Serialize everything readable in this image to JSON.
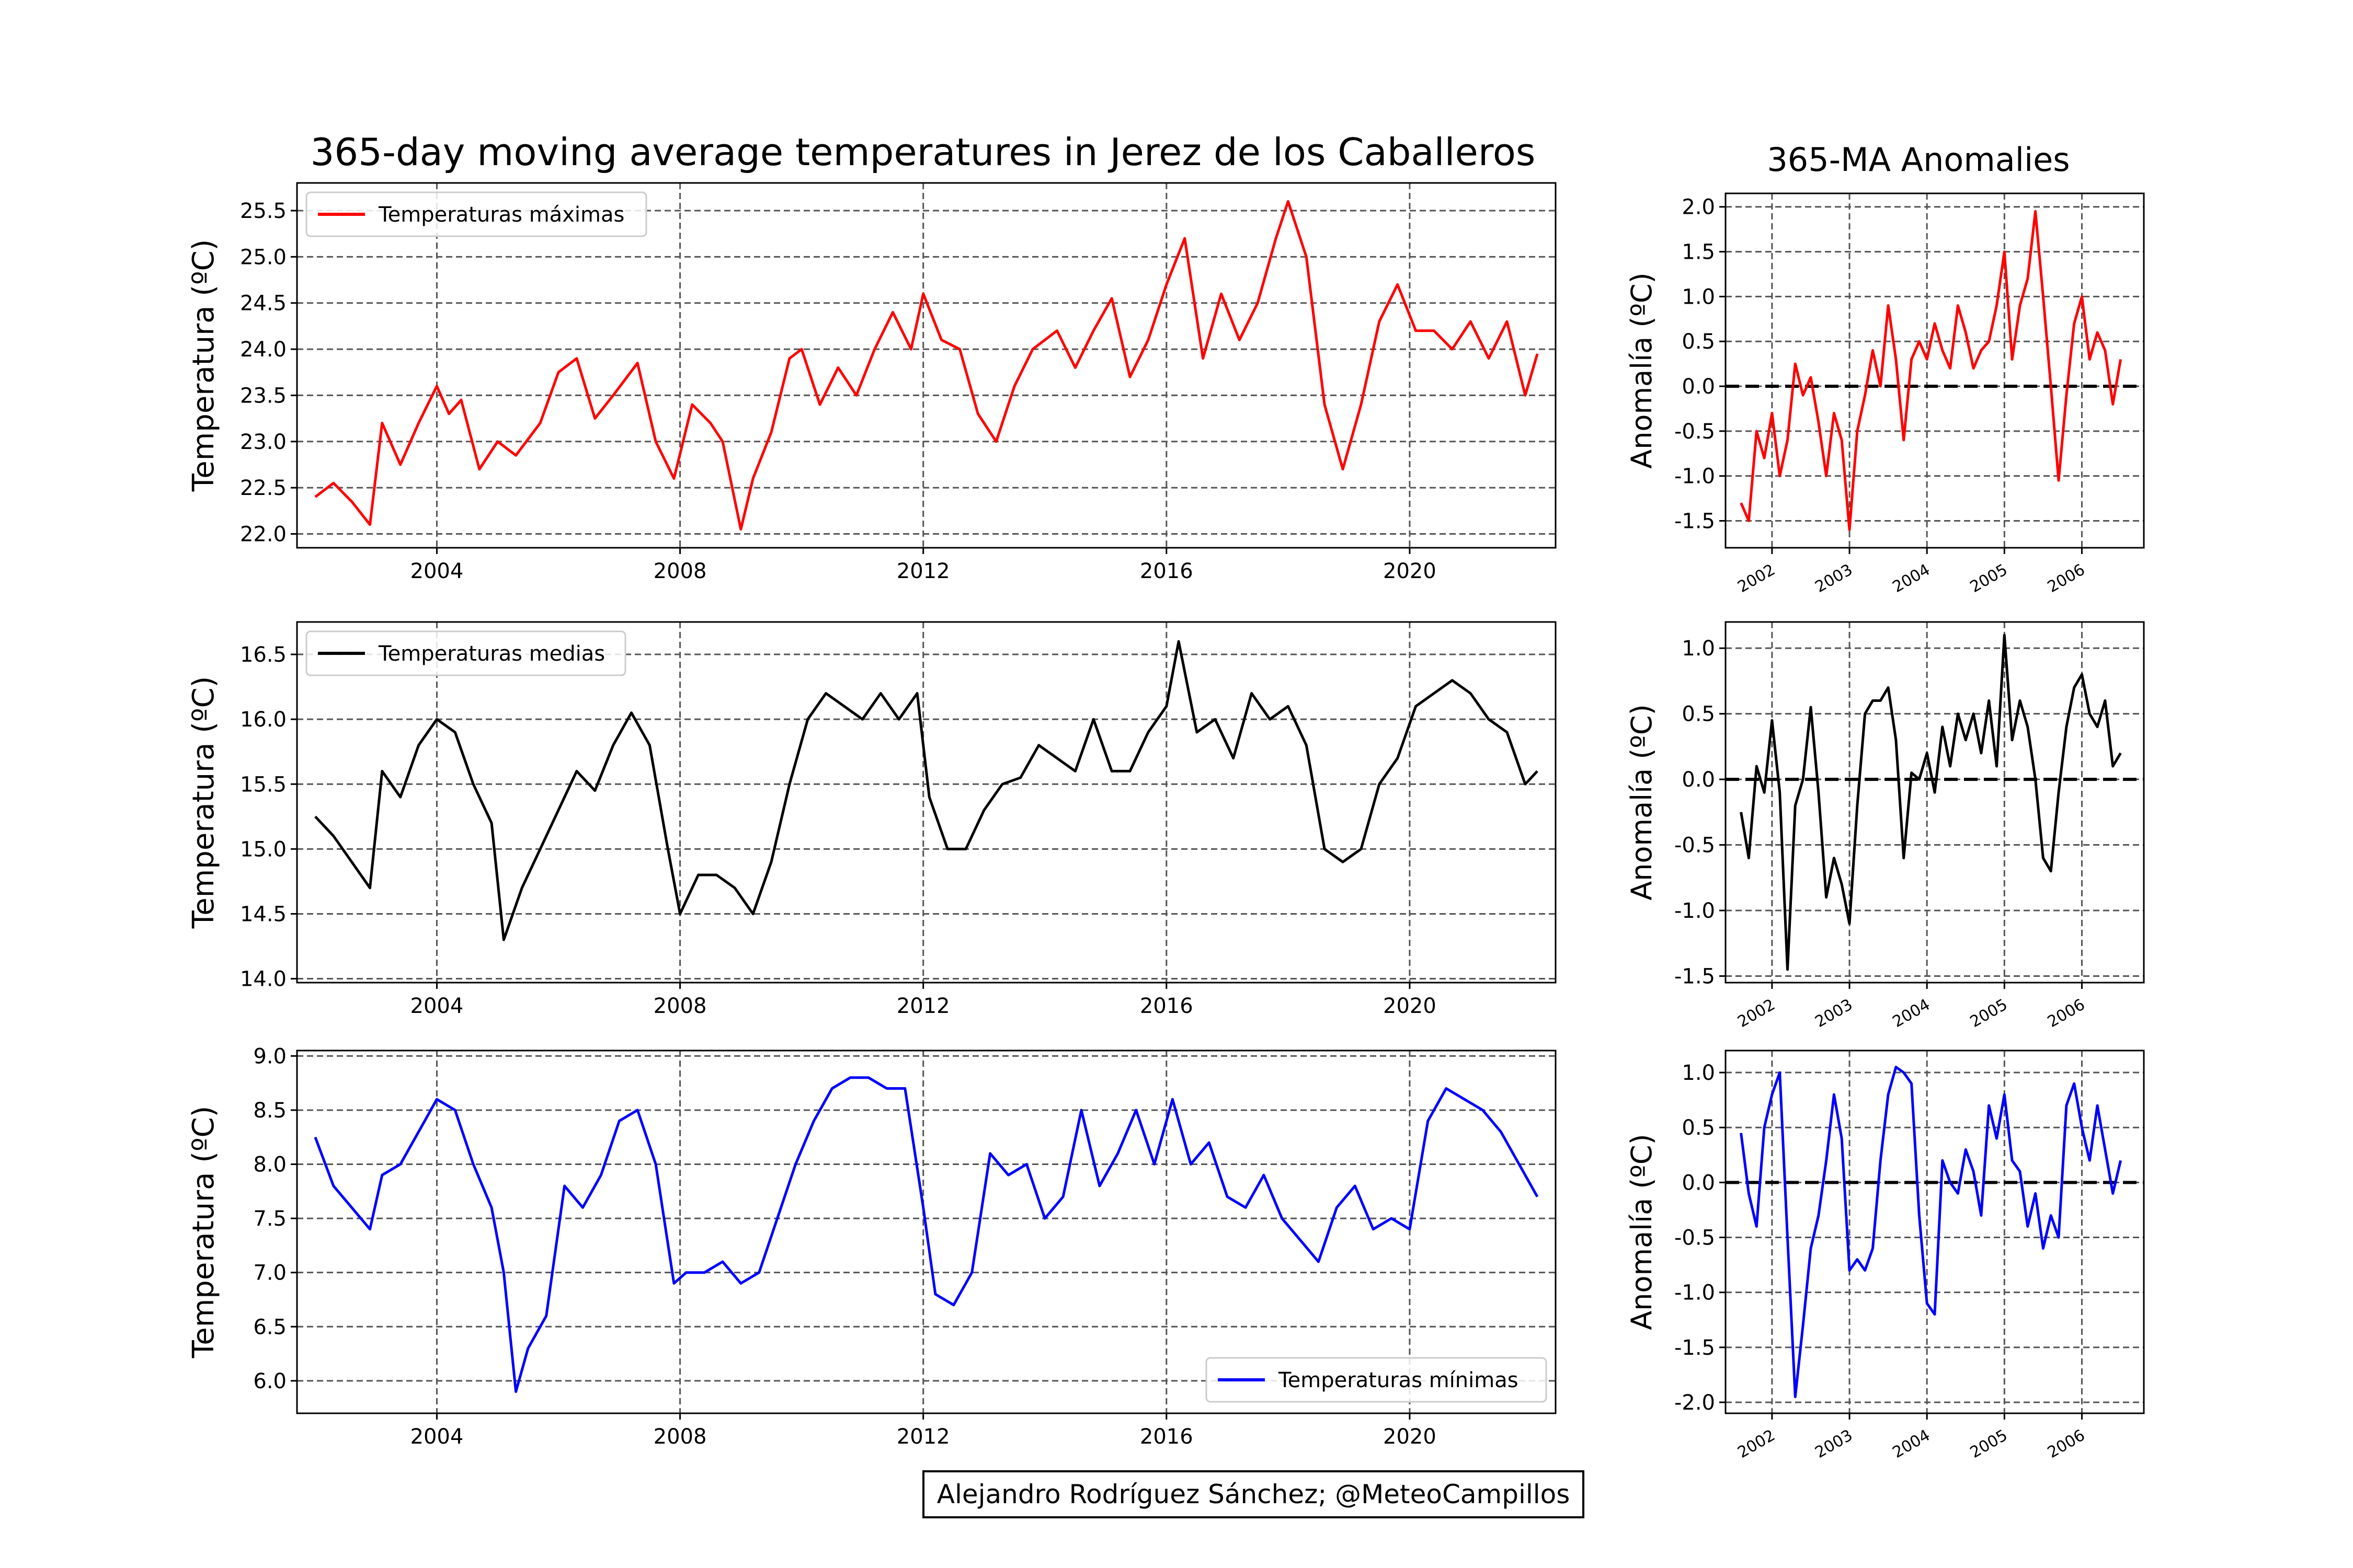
{
  "figure": {
    "main_title": "365-day moving average temperatures in Jerez de los Caballeros",
    "anomaly_title": "365-MA Anomalies",
    "credit": "Alejandro Rodríguez Sánchez; @MeteoCampillos",
    "ylabel_main": "Temperatura (ºC)",
    "ylabel_anom": "Anomalía (ºC)"
  },
  "colors": {
    "max": "#ff0000",
    "mean": "#000000",
    "min": "#0000ff",
    "grid": "#555555"
  },
  "chart_data": [
    {
      "type": "line",
      "id": "max",
      "legend": "Temperaturas máximas",
      "legend_position": "upper-left",
      "xlim": [
        2001.7,
        2022.4
      ],
      "ylim": [
        21.85,
        25.8
      ],
      "xticks": [
        2004,
        2008,
        2012,
        2016,
        2020
      ],
      "yticks": [
        22.0,
        22.5,
        23.0,
        23.5,
        24.0,
        24.5,
        25.0,
        25.5
      ],
      "grid": true,
      "x": [
        2002.0,
        2002.3,
        2002.6,
        2002.9,
        2003.1,
        2003.4,
        2003.7,
        2004.0,
        2004.2,
        2004.4,
        2004.7,
        2005.0,
        2005.3,
        2005.7,
        2006.0,
        2006.3,
        2006.6,
        2006.9,
        2007.3,
        2007.6,
        2007.9,
        2008.2,
        2008.5,
        2008.7,
        2009.0,
        2009.2,
        2009.5,
        2009.8,
        2010.0,
        2010.3,
        2010.6,
        2010.9,
        2011.2,
        2011.5,
        2011.8,
        2012.0,
        2012.3,
        2012.6,
        2012.9,
        2013.2,
        2013.5,
        2013.8,
        2014.2,
        2014.5,
        2014.8,
        2015.1,
        2015.4,
        2015.7,
        2016.0,
        2016.3,
        2016.6,
        2016.9,
        2017.2,
        2017.5,
        2017.8,
        2018.0,
        2018.3,
        2018.6,
        2018.9,
        2019.2,
        2019.5,
        2019.8,
        2020.1,
        2020.4,
        2020.7,
        2021.0,
        2021.3,
        2021.6,
        2021.9,
        2022.1
      ],
      "y": [
        22.4,
        22.55,
        22.35,
        22.1,
        23.2,
        22.75,
        23.2,
        23.6,
        23.3,
        23.45,
        22.7,
        23.0,
        22.85,
        23.2,
        23.75,
        23.9,
        23.25,
        23.5,
        23.85,
        23.0,
        22.6,
        23.4,
        23.2,
        23.0,
        22.05,
        22.6,
        23.1,
        23.9,
        24.0,
        23.4,
        23.8,
        23.5,
        24.0,
        24.4,
        24.0,
        24.6,
        24.1,
        24.0,
        23.3,
        23.0,
        23.6,
        24.0,
        24.2,
        23.8,
        24.2,
        24.55,
        23.7,
        24.1,
        24.7,
        25.2,
        23.9,
        24.6,
        24.1,
        24.5,
        25.2,
        25.6,
        25.0,
        23.4,
        22.7,
        23.4,
        24.3,
        24.7,
        24.2,
        24.2,
        24.0,
        24.3,
        23.9,
        24.3,
        23.5,
        23.95
      ]
    },
    {
      "type": "line",
      "id": "mean",
      "legend": "Temperaturas medias",
      "legend_position": "upper-left",
      "xlim": [
        2001.7,
        2022.4
      ],
      "ylim": [
        13.97,
        16.75
      ],
      "xticks": [
        2004,
        2008,
        2012,
        2016,
        2020
      ],
      "yticks": [
        14.0,
        14.5,
        15.0,
        15.5,
        16.0,
        16.5
      ],
      "grid": true,
      "x": [
        2002.0,
        2002.3,
        2002.6,
        2002.9,
        2003.1,
        2003.4,
        2003.7,
        2004.0,
        2004.3,
        2004.6,
        2004.9,
        2005.1,
        2005.4,
        2005.7,
        2006.0,
        2006.3,
        2006.6,
        2006.9,
        2007.2,
        2007.5,
        2007.8,
        2008.0,
        2008.3,
        2008.6,
        2008.9,
        2009.2,
        2009.5,
        2009.8,
        2010.1,
        2010.4,
        2010.7,
        2011.0,
        2011.3,
        2011.6,
        2011.9,
        2012.1,
        2012.4,
        2012.7,
        2013.0,
        2013.3,
        2013.6,
        2013.9,
        2014.2,
        2014.5,
        2014.8,
        2015.1,
        2015.4,
        2015.7,
        2016.0,
        2016.2,
        2016.5,
        2016.8,
        2017.1,
        2017.4,
        2017.7,
        2018.0,
        2018.3,
        2018.6,
        2018.9,
        2019.2,
        2019.5,
        2019.8,
        2020.1,
        2020.4,
        2020.7,
        2021.0,
        2021.3,
        2021.6,
        2021.9,
        2022.1
      ],
      "y": [
        15.25,
        15.1,
        14.9,
        14.7,
        15.6,
        15.4,
        15.8,
        16.0,
        15.9,
        15.5,
        15.2,
        14.3,
        14.7,
        15.0,
        15.3,
        15.6,
        15.45,
        15.8,
        16.05,
        15.8,
        15.0,
        14.5,
        14.8,
        14.8,
        14.7,
        14.5,
        14.9,
        15.5,
        16.0,
        16.2,
        16.1,
        16.0,
        16.2,
        16.0,
        16.2,
        15.4,
        15.0,
        15.0,
        15.3,
        15.5,
        15.55,
        15.8,
        15.7,
        15.6,
        16.0,
        15.6,
        15.6,
        15.9,
        16.1,
        16.6,
        15.9,
        16.0,
        15.7,
        16.2,
        16.0,
        16.1,
        15.8,
        15.0,
        14.9,
        15.0,
        15.5,
        15.7,
        16.1,
        16.2,
        16.3,
        16.2,
        16.0,
        15.9,
        15.5,
        15.6
      ]
    },
    {
      "type": "line",
      "id": "min",
      "legend": "Temperaturas mínimas",
      "legend_position": "lower-right",
      "xlim": [
        2001.7,
        2022.4
      ],
      "ylim": [
        5.7,
        9.05
      ],
      "xticks": [
        2004,
        2008,
        2012,
        2016,
        2020
      ],
      "yticks": [
        6.0,
        6.5,
        7.0,
        7.5,
        8.0,
        8.5,
        9.0
      ],
      "grid": true,
      "x": [
        2002.0,
        2002.3,
        2002.6,
        2002.9,
        2003.1,
        2003.4,
        2003.7,
        2004.0,
        2004.3,
        2004.6,
        2004.9,
        2005.1,
        2005.3,
        2005.5,
        2005.8,
        2006.1,
        2006.4,
        2006.7,
        2007.0,
        2007.3,
        2007.6,
        2007.9,
        2008.1,
        2008.4,
        2008.7,
        2009.0,
        2009.3,
        2009.6,
        2009.9,
        2010.2,
        2010.5,
        2010.8,
        2011.1,
        2011.4,
        2011.7,
        2012.0,
        2012.2,
        2012.5,
        2012.8,
        2013.1,
        2013.4,
        2013.7,
        2014.0,
        2014.3,
        2014.6,
        2014.9,
        2015.2,
        2015.5,
        2015.8,
        2016.1,
        2016.4,
        2016.7,
        2017.0,
        2017.3,
        2017.6,
        2017.9,
        2018.2,
        2018.5,
        2018.8,
        2019.1,
        2019.4,
        2019.7,
        2020.0,
        2020.3,
        2020.6,
        2020.9,
        2021.2,
        2021.5,
        2021.8,
        2022.1
      ],
      "y": [
        8.25,
        7.8,
        7.6,
        7.4,
        7.9,
        8.0,
        8.3,
        8.6,
        8.5,
        8.0,
        7.6,
        7.0,
        5.9,
        6.3,
        6.6,
        7.8,
        7.6,
        7.9,
        8.4,
        8.5,
        8.0,
        6.9,
        7.0,
        7.0,
        7.1,
        6.9,
        7.0,
        7.5,
        8.0,
        8.4,
        8.7,
        8.8,
        8.8,
        8.7,
        8.7,
        7.6,
        6.8,
        6.7,
        7.0,
        8.1,
        7.9,
        8.0,
        7.5,
        7.7,
        8.5,
        7.8,
        8.1,
        8.5,
        8.0,
        8.6,
        8.0,
        8.2,
        7.7,
        7.6,
        7.9,
        7.5,
        7.3,
        7.1,
        7.6,
        7.8,
        7.4,
        7.5,
        7.4,
        8.4,
        8.7,
        8.6,
        8.5,
        8.3,
        8.0,
        7.7
      ]
    },
    {
      "type": "line",
      "id": "max-anomaly",
      "xlim": [
        2001.4,
        2006.8
      ],
      "ylim": [
        -1.8,
        2.15
      ],
      "xticks": [
        2002,
        2003,
        2004,
        2005,
        2006
      ],
      "yticks": [
        -1.5,
        -1.0,
        -0.5,
        0.0,
        0.5,
        1.0,
        1.5,
        2.0
      ],
      "zero_line": true,
      "grid": true,
      "x": [
        2001.6,
        2001.7,
        2001.8,
        2001.9,
        2002.0,
        2002.1,
        2002.2,
        2002.3,
        2002.4,
        2002.5,
        2002.6,
        2002.7,
        2002.8,
        2002.9,
        2003.0,
        2003.1,
        2003.2,
        2003.3,
        2003.4,
        2003.5,
        2003.6,
        2003.7,
        2003.8,
        2003.9,
        2004.0,
        2004.1,
        2004.2,
        2004.3,
        2004.4,
        2004.5,
        2004.6,
        2004.7,
        2004.8,
        2004.9,
        2005.0,
        2005.1,
        2005.2,
        2005.3,
        2005.4,
        2005.5,
        2005.6,
        2005.7,
        2005.8,
        2005.9,
        2006.0,
        2006.1,
        2006.2,
        2006.3,
        2006.4,
        2006.5
      ],
      "y": [
        -1.3,
        -1.5,
        -0.5,
        -0.8,
        -0.3,
        -1.0,
        -0.6,
        0.25,
        -0.1,
        0.1,
        -0.4,
        -1.0,
        -0.3,
        -0.6,
        -1.6,
        -0.5,
        -0.1,
        0.4,
        0.0,
        0.9,
        0.3,
        -0.6,
        0.3,
        0.5,
        0.3,
        0.7,
        0.4,
        0.2,
        0.9,
        0.6,
        0.2,
        0.4,
        0.5,
        0.9,
        1.5,
        0.3,
        0.9,
        1.2,
        1.95,
        1.0,
        0.0,
        -1.05,
        -0.1,
        0.7,
        1.0,
        0.3,
        0.6,
        0.4,
        -0.2,
        0.3
      ]
    },
    {
      "type": "line",
      "id": "mean-anomaly",
      "xlim": [
        2001.4,
        2006.8
      ],
      "ylim": [
        -1.55,
        1.2
      ],
      "xticks": [
        2002,
        2003,
        2004,
        2005,
        2006
      ],
      "yticks": [
        -1.5,
        -1.0,
        -0.5,
        0.0,
        0.5,
        1.0
      ],
      "zero_line": true,
      "grid": true,
      "x": [
        2001.6,
        2001.7,
        2001.8,
        2001.9,
        2002.0,
        2002.1,
        2002.2,
        2002.3,
        2002.4,
        2002.5,
        2002.6,
        2002.7,
        2002.8,
        2002.9,
        2003.0,
        2003.1,
        2003.2,
        2003.3,
        2003.4,
        2003.5,
        2003.6,
        2003.7,
        2003.8,
        2003.9,
        2004.0,
        2004.1,
        2004.2,
        2004.3,
        2004.4,
        2004.5,
        2004.6,
        2004.7,
        2004.8,
        2004.9,
        2005.0,
        2005.1,
        2005.2,
        2005.3,
        2005.4,
        2005.5,
        2005.6,
        2005.7,
        2005.8,
        2005.9,
        2006.0,
        2006.1,
        2006.2,
        2006.3,
        2006.4,
        2006.5
      ],
      "y": [
        -0.25,
        -0.6,
        0.1,
        -0.1,
        0.45,
        -0.1,
        -1.45,
        -0.2,
        0.0,
        0.55,
        -0.1,
        -0.9,
        -0.6,
        -0.8,
        -1.1,
        -0.2,
        0.5,
        0.6,
        0.6,
        0.7,
        0.3,
        -0.6,
        0.05,
        0.0,
        0.2,
        -0.1,
        0.4,
        0.1,
        0.5,
        0.3,
        0.5,
        0.2,
        0.6,
        0.1,
        1.1,
        0.3,
        0.6,
        0.4,
        0.0,
        -0.6,
        -0.7,
        -0.1,
        0.4,
        0.7,
        0.8,
        0.5,
        0.4,
        0.6,
        0.1,
        0.2
      ]
    },
    {
      "type": "line",
      "id": "min-anomaly",
      "xlim": [
        2001.4,
        2006.8
      ],
      "ylim": [
        -2.1,
        1.2
      ],
      "xticks": [
        2002,
        2003,
        2004,
        2005,
        2006
      ],
      "yticks": [
        -2.0,
        -1.5,
        -1.0,
        -0.5,
        0.0,
        0.5,
        1.0
      ],
      "zero_line": true,
      "grid": true,
      "x": [
        2001.6,
        2001.7,
        2001.8,
        2001.9,
        2002.0,
        2002.1,
        2002.2,
        2002.3,
        2002.4,
        2002.5,
        2002.6,
        2002.7,
        2002.8,
        2002.9,
        2003.0,
        2003.1,
        2003.2,
        2003.3,
        2003.4,
        2003.5,
        2003.6,
        2003.7,
        2003.8,
        2003.9,
        2004.0,
        2004.1,
        2004.2,
        2004.3,
        2004.4,
        2004.5,
        2004.6,
        2004.7,
        2004.8,
        2004.9,
        2005.0,
        2005.1,
        2005.2,
        2005.3,
        2005.4,
        2005.5,
        2005.6,
        2005.7,
        2005.8,
        2005.9,
        2006.0,
        2006.1,
        2006.2,
        2006.3,
        2006.4,
        2006.5
      ],
      "y": [
        0.45,
        -0.1,
        -0.4,
        0.5,
        0.8,
        1.0,
        -0.5,
        -1.95,
        -1.3,
        -0.6,
        -0.3,
        0.2,
        0.8,
        0.4,
        -0.8,
        -0.7,
        -0.8,
        -0.6,
        0.2,
        0.8,
        1.05,
        1.0,
        0.9,
        -0.3,
        -1.1,
        -1.2,
        0.2,
        0.0,
        -0.1,
        0.3,
        0.1,
        -0.3,
        0.7,
        0.4,
        0.8,
        0.2,
        0.1,
        -0.4,
        -0.1,
        -0.6,
        -0.3,
        -0.5,
        0.7,
        0.9,
        0.5,
        0.2,
        0.7,
        0.3,
        -0.1,
        0.2
      ]
    }
  ]
}
